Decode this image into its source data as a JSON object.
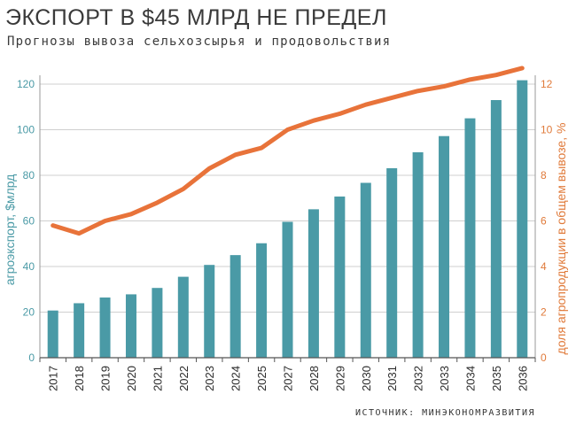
{
  "header": {
    "title": "ЭКСПОРТ В $45 МЛРД НЕ ПРЕДЕЛ",
    "subtitle": "Прогнозы вывоза сельхозсырья и продовольствия"
  },
  "footer": {
    "source": "ИСТОЧНИК: МИНЭКОНОМРАЗВИТИЯ"
  },
  "colors": {
    "bars": "#4a9aa6",
    "line": "#e8733a",
    "grid": "#cfcfcf",
    "left_axis_text": "#4a9aa6",
    "right_axis_text": "#e07a3a"
  },
  "chart_data": {
    "type": "bar",
    "title": "ЭКСПОРТ В $45 МЛРД НЕ ПРЕДЕЛ",
    "subtitle": "Прогнозы вывоза сельхозсырья и продовольствия",
    "categories": [
      "2017",
      "2018",
      "2019",
      "2020",
      "2021",
      "2022",
      "2023",
      "2024",
      "2025",
      "2027",
      "2028",
      "2029",
      "2030",
      "2031",
      "2032",
      "2033",
      "2034",
      "2035",
      "2036"
    ],
    "series": [
      {
        "type": "bar",
        "axis": "left",
        "values": [
          20.7,
          23.9,
          26.4,
          27.8,
          30.6,
          35.5,
          40.7,
          45.0,
          50.2,
          59.6,
          65.1,
          70.7,
          76.7,
          83.1,
          90.1,
          97.2,
          105.0,
          113.0,
          121.7
        ]
      },
      {
        "type": "line",
        "axis": "right",
        "values": [
          5.8,
          5.45,
          6.0,
          6.3,
          6.8,
          7.4,
          8.3,
          8.9,
          9.2,
          10.0,
          10.4,
          10.7,
          11.1,
          11.4,
          11.7,
          11.9,
          12.2,
          12.4,
          12.7
        ]
      }
    ],
    "ylabel": "агроэкспорт, $млрд",
    "ylim": [
      0,
      120
    ],
    "yticks": [
      0,
      20,
      40,
      60,
      80,
      100,
      120
    ],
    "y2label": "доля агропродукции в общем вывозе, %",
    "y2lim": [
      0,
      12
    ],
    "y2ticks": [
      0,
      2,
      4,
      6,
      8,
      10,
      12
    ],
    "grid": true,
    "legend": "none"
  }
}
